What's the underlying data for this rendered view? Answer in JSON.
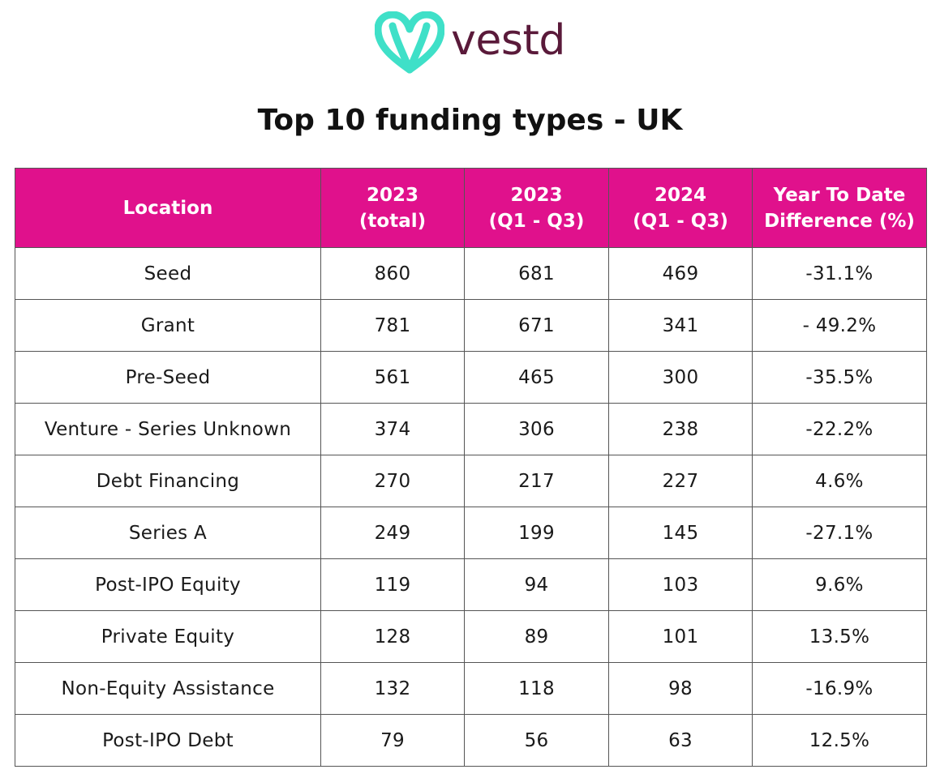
{
  "brand": {
    "name": "vestd",
    "mark_color": "#3fe0c8",
    "word_color": "#5a1a3a"
  },
  "title": "Top 10 funding types - UK",
  "header_color": "#e0118c",
  "columns": [
    "Location",
    "2023\n(total)",
    "2023\n(Q1 - Q3)",
    "2024\n(Q1 - Q3)",
    "Year To Date\nDifference (%)"
  ],
  "rows": [
    [
      "Seed",
      "860",
      "681",
      "469",
      "-31.1%"
    ],
    [
      "Grant",
      "781",
      "671",
      "341",
      "- 49.2%"
    ],
    [
      "Pre-Seed",
      "561",
      "465",
      "300",
      "-35.5%"
    ],
    [
      "Venture - Series Unknown",
      "374",
      "306",
      "238",
      "-22.2%"
    ],
    [
      "Debt Financing",
      "270",
      "217",
      "227",
      "4.6%"
    ],
    [
      "Series A",
      "249",
      "199",
      "145",
      "-27.1%"
    ],
    [
      "Post-IPO Equity",
      "119",
      "94",
      "103",
      "9.6%"
    ],
    [
      "Private Equity",
      "128",
      "89",
      "101",
      "13.5%"
    ],
    [
      "Non-Equity Assistance",
      "132",
      "118",
      "98",
      "-16.9%"
    ],
    [
      "Post-IPO Debt",
      "79",
      "56",
      "63",
      "12.5%"
    ]
  ]
}
